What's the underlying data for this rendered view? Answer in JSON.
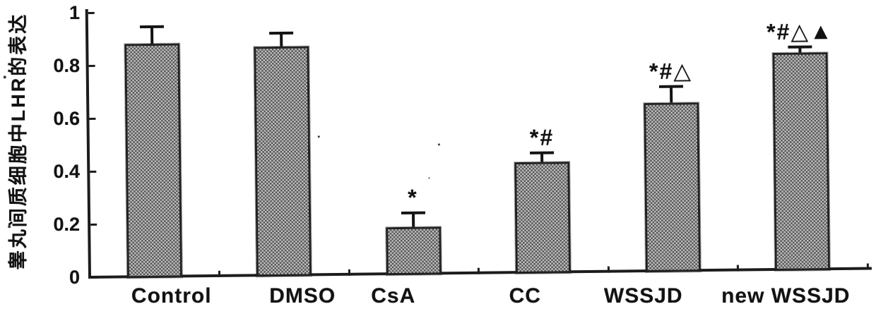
{
  "figure": {
    "background": "#ffffff",
    "ink_color": "#1c1c1c",
    "bar_fill_average": "#9a9a9a",
    "bar_checker_dark": "#565656",
    "bar_checker_light": "#bfbfbf"
  },
  "chart_data": {
    "type": "bar",
    "title": "",
    "xlabel": "",
    "ylabel": "睾丸间质细胞中LHR的表达",
    "categories": [
      "Control",
      "DMSO",
      "CsA",
      "CC",
      "WSSJD",
      "new WSSJD"
    ],
    "values": [
      0.88,
      0.865,
      0.175,
      0.415,
      0.635,
      0.82
    ],
    "error_upper": [
      0.065,
      0.05,
      0.055,
      0.035,
      0.06,
      0.02
    ],
    "annotations": [
      "",
      "",
      "*",
      "*#",
      "*#△",
      "*#△▲"
    ],
    "ylim": [
      0,
      1
    ],
    "yticks": [
      0,
      0.2,
      0.4,
      0.6,
      0.8,
      1
    ],
    "ytick_labels": [
      "0",
      "0.2",
      "0.4",
      "0.6",
      "0.8",
      "1"
    ],
    "grid": false,
    "legend_position": "none",
    "error_bar_style": "upper-only T caps",
    "bar_texture": "halftone checker (scanned grayscale)"
  }
}
